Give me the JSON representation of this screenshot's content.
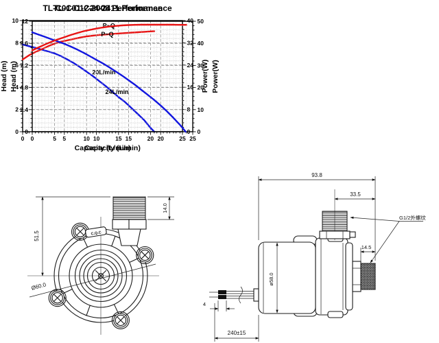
{
  "colors": {
    "curve_red": "#e81414",
    "curve_blue": "#1216df",
    "grid_minor": "#c9c9c9",
    "grid_major": "#8f8f8f",
    "axis": "#000000",
    "drawing_line": "#1a1a1a"
  },
  "chart_data": [
    {
      "type": "line",
      "title": "TL-C01-C12-2008 Performance",
      "xlabel": "Capacity (L/min)",
      "ylabel_left": "Head (m)",
      "ylabel_right": "Power(W)",
      "xlim": [
        0,
        25
      ],
      "ylim_left": [
        0,
        10
      ],
      "ylim_right": [
        0,
        40
      ],
      "xticks": [
        0,
        5,
        10,
        15,
        20,
        25
      ],
      "yticks_left": [
        0,
        2,
        4,
        6,
        8,
        10
      ],
      "yticks_right": [
        0,
        8,
        16,
        24,
        32,
        40
      ],
      "x_minor_step": 1,
      "y_minor_divisions": 5,
      "grid": true,
      "series": [
        {
          "key": "head",
          "name": "Head vs flow curve",
          "label": "20L/min",
          "axis": "left",
          "color_key": "curve_blue",
          "points": [
            [
              0,
              7.85
            ],
            [
              1,
              7.7
            ],
            [
              2,
              7.55
            ],
            [
              3,
              7.38
            ],
            [
              4,
              7.22
            ],
            [
              5,
              7.05
            ],
            [
              6,
              6.8
            ],
            [
              7,
              6.5
            ],
            [
              8,
              6.17
            ],
            [
              9,
              5.8
            ],
            [
              10,
              5.4
            ],
            [
              11,
              5.0
            ],
            [
              12,
              4.55
            ],
            [
              13,
              4.1
            ],
            [
              14,
              3.62
            ],
            [
              15,
              3.12
            ],
            [
              16,
              2.68
            ],
            [
              17,
              2.15
            ],
            [
              18,
              1.6
            ],
            [
              19,
              1.05
            ],
            [
              20,
              0.35
            ],
            [
              20.6,
              0
            ]
          ],
          "label_pos": [
            12.7,
            5.15
          ]
        },
        {
          "key": "power",
          "name": "Power vs flow curve",
          "label": "P~Q",
          "axis": "right",
          "color_key": "curve_red",
          "points": [
            [
              0,
              26
            ],
            [
              1,
              27.5
            ],
            [
              2,
              28.7
            ],
            [
              3,
              29.7
            ],
            [
              4,
              30.8
            ],
            [
              5,
              31.7
            ],
            [
              6,
              32.4
            ],
            [
              7,
              32.9
            ],
            [
              8,
              33.4
            ],
            [
              9,
              33.9
            ],
            [
              10,
              34.3
            ],
            [
              11,
              34.6
            ],
            [
              12,
              34.85
            ],
            [
              13,
              35.0
            ],
            [
              14,
              35.15
            ],
            [
              15,
              35.35
            ],
            [
              16,
              35.5
            ],
            [
              17,
              35.65
            ],
            [
              18,
              35.8
            ],
            [
              19,
              35.95
            ],
            [
              20,
              36.1
            ],
            [
              20.6,
              36.2
            ]
          ],
          "label_pos": [
            13.5,
            37.4
          ]
        }
      ]
    },
    {
      "type": "line",
      "title": "TL-C01-C24-2411 Performance",
      "xlabel": "Capacity (L/min)",
      "ylabel_left": "Head (m)",
      "ylabel_right": "Power(W)",
      "xlim": [
        0,
        25
      ],
      "ylim_left": [
        0,
        12
      ],
      "ylim_right": [
        0,
        50
      ],
      "xticks": [
        0,
        5,
        10,
        15,
        20,
        25
      ],
      "yticks_left": [
        0,
        2.4,
        4.8,
        7.2,
        9.6,
        12
      ],
      "yticks_right": [
        0,
        10,
        20,
        30,
        40,
        50
      ],
      "x_minor_step": 1,
      "y_minor_divisions": 5,
      "grid": true,
      "series": [
        {
          "key": "head",
          "name": "Head vs flow curve",
          "label": "24L/min",
          "axis": "left",
          "color_key": "curve_blue",
          "points": [
            [
              0,
              10.8
            ],
            [
              1,
              10.55
            ],
            [
              2,
              10.3
            ],
            [
              3,
              10.05
            ],
            [
              4,
              9.8
            ],
            [
              5,
              9.55
            ],
            [
              6,
              9.25
            ],
            [
              7,
              8.93
            ],
            [
              8,
              8.58
            ],
            [
              9,
              8.2
            ],
            [
              10,
              7.8
            ],
            [
              11,
              7.42
            ],
            [
              12,
              7.0
            ],
            [
              13,
              6.55
            ],
            [
              14,
              6.1
            ],
            [
              15,
              5.6
            ],
            [
              16,
              5.1
            ],
            [
              17,
              4.55
            ],
            [
              18,
              4.0
            ],
            [
              19,
              3.45
            ],
            [
              20,
              2.85
            ],
            [
              21,
              2.2
            ],
            [
              22,
              1.5
            ],
            [
              23,
              0.75
            ],
            [
              23.9,
              0
            ]
          ],
          "label_pos": [
            13.2,
            4.1
          ]
        },
        {
          "key": "power",
          "name": "Power vs flow curve",
          "label": "P~Q",
          "axis": "right",
          "color_key": "curve_red",
          "points": [
            [
              0,
              36.8
            ],
            [
              1,
              38.2
            ],
            [
              2,
              39.5
            ],
            [
              3,
              40.7
            ],
            [
              4,
              41.8
            ],
            [
              5,
              42.8
            ],
            [
              6,
              43.8
            ],
            [
              7,
              44.7
            ],
            [
              8,
              45.5
            ],
            [
              9,
              46.1
            ],
            [
              10,
              46.7
            ],
            [
              11,
              47.2
            ],
            [
              12,
              47.6
            ],
            [
              13,
              47.9
            ],
            [
              14,
              48.15
            ],
            [
              15,
              48.3
            ],
            [
              16,
              48.4
            ],
            [
              17,
              48.45
            ],
            [
              18,
              48.45
            ],
            [
              19,
              48.45
            ],
            [
              20,
              48.45
            ],
            [
              21,
              48.45
            ],
            [
              22,
              48.45
            ],
            [
              23,
              48.4
            ],
            [
              24,
              48.4
            ]
          ],
          "label_pos": [
            11.7,
            43.2
          ]
        }
      ]
    }
  ],
  "drawings": {
    "front_view": {
      "dim_height": "51.5",
      "dim_thread_len": "14.0",
      "dim_diameter": "Ø60.0",
      "body_mark": "C.Q.C"
    },
    "side_view": {
      "dim_overall_len": "93.8",
      "dim_outlet_offset": "33.5",
      "dim_inlet_thread": "14.5",
      "dim_motor_dia": "ø58.0",
      "dim_cable_len": "240±15",
      "dim_terminal": "4",
      "thread_note": "G1/2外螺纹"
    }
  }
}
